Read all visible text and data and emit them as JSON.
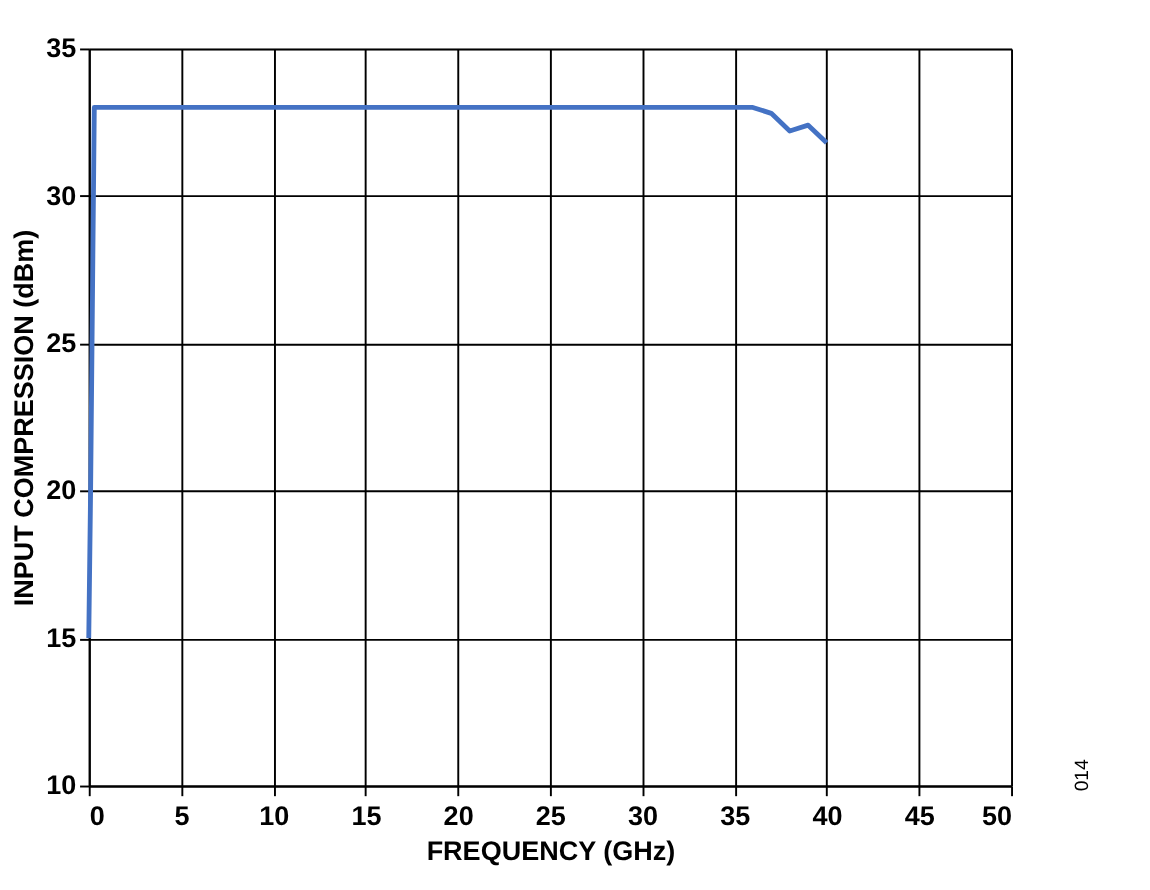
{
  "chart_data": {
    "type": "line",
    "xlabel": "FREQUENCY (GHz)",
    "ylabel": "INPUT COMPRESSION (dBm)",
    "x": [
      0,
      0.1,
      0.3,
      5,
      10,
      15,
      20,
      25,
      30,
      35,
      36,
      37,
      38,
      39,
      40
    ],
    "series": [
      {
        "color": "#4472c4",
        "values": [
          15,
          20,
          33,
          33,
          33,
          33,
          33,
          33,
          33,
          33,
          33,
          32.8,
          32.2,
          32.4,
          31.8
        ]
      }
    ],
    "xlim": [
      0,
      50
    ],
    "xticks": [
      0,
      5,
      10,
      15,
      20,
      25,
      30,
      35,
      40,
      45,
      50
    ],
    "ylim": [
      10,
      35
    ],
    "yticks": [
      10,
      15,
      20,
      25,
      30,
      35
    ],
    "grid": true,
    "annotations": [
      "014"
    ]
  }
}
